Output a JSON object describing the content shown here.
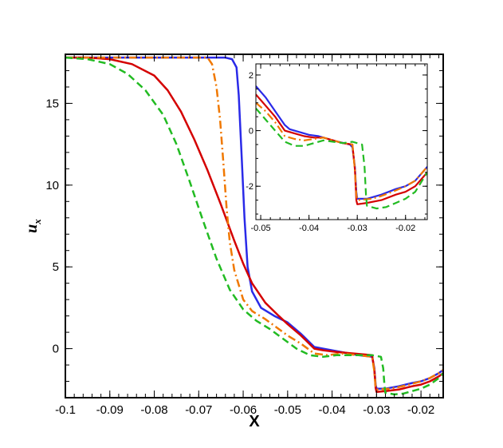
{
  "chart_data": [
    {
      "type": "line",
      "title": "",
      "xlabel": "X",
      "ylabel": "u",
      "ylabel_subscript": "x",
      "xlim": [
        -0.1,
        -0.015
      ],
      "ylim": [
        -3,
        18
      ],
      "x_ticks": [
        -0.1,
        -0.09,
        -0.08,
        -0.07,
        -0.06,
        -0.05,
        -0.04,
        -0.03,
        -0.02
      ],
      "x_tick_labels": [
        "-0.1",
        "-0.09",
        "-0.08",
        "-0.07",
        "-0.06",
        "-0.05",
        "-0.04",
        "-0.03",
        "-0.02"
      ],
      "y_ticks": [
        0,
        5,
        10,
        15
      ],
      "y_tick_labels": [
        "0",
        "5",
        "10",
        "15"
      ],
      "grid": false,
      "legend": "none",
      "series": [
        {
          "color": "#2a2ae8",
          "dash": "solid",
          "points": [
            [
              -0.1,
              17.8
            ],
            [
              -0.09,
              17.8
            ],
            [
              -0.08,
              17.8
            ],
            [
              -0.07,
              17.8
            ],
            [
              -0.064,
              17.8
            ],
            [
              -0.0625,
              17.7
            ],
            [
              -0.0615,
              17.2
            ],
            [
              -0.061,
              15.5
            ],
            [
              -0.0603,
              11.5
            ],
            [
              -0.0597,
              8.0
            ],
            [
              -0.059,
              5.0
            ],
            [
              -0.058,
              3.5
            ],
            [
              -0.056,
              2.5
            ],
            [
              -0.053,
              2.0
            ],
            [
              -0.05,
              1.6
            ],
            [
              -0.047,
              0.9
            ],
            [
              -0.044,
              0.1
            ],
            [
              -0.042,
              0.0
            ],
            [
              -0.038,
              -0.2
            ],
            [
              -0.034,
              -0.4
            ],
            [
              -0.031,
              -0.5
            ],
            [
              -0.0305,
              -1.2
            ],
            [
              -0.0302,
              -2.2
            ],
            [
              -0.03,
              -2.45
            ],
            [
              -0.028,
              -2.45
            ],
            [
              -0.025,
              -2.3
            ],
            [
              -0.022,
              -2.1
            ],
            [
              -0.02,
              -2.0
            ],
            [
              -0.018,
              -1.8
            ],
            [
              -0.016,
              -1.5
            ],
            [
              -0.015,
              -1.3
            ]
          ]
        },
        {
          "color": "#d40000",
          "dash": "solid",
          "points": [
            [
              -0.1,
              17.8
            ],
            [
              -0.095,
              17.8
            ],
            [
              -0.09,
              17.7
            ],
            [
              -0.085,
              17.4
            ],
            [
              -0.08,
              16.7
            ],
            [
              -0.077,
              15.8
            ],
            [
              -0.074,
              14.5
            ],
            [
              -0.071,
              12.8
            ],
            [
              -0.068,
              10.9
            ],
            [
              -0.065,
              8.8
            ],
            [
              -0.062,
              6.6
            ],
            [
              -0.06,
              5.2
            ],
            [
              -0.058,
              4.0
            ],
            [
              -0.055,
              2.8
            ],
            [
              -0.052,
              2.0
            ],
            [
              -0.05,
              1.5
            ],
            [
              -0.047,
              0.8
            ],
            [
              -0.044,
              0.0
            ],
            [
              -0.042,
              -0.1
            ],
            [
              -0.039,
              -0.2
            ],
            [
              -0.035,
              -0.3
            ],
            [
              -0.031,
              -0.4
            ],
            [
              -0.0305,
              -1.3
            ],
            [
              -0.0302,
              -2.4
            ],
            [
              -0.03,
              -2.65
            ],
            [
              -0.028,
              -2.6
            ],
            [
              -0.025,
              -2.5
            ],
            [
              -0.022,
              -2.3
            ],
            [
              -0.02,
              -2.2
            ],
            [
              -0.018,
              -2.0
            ],
            [
              -0.016,
              -1.7
            ],
            [
              -0.015,
              -1.5
            ]
          ]
        },
        {
          "color": "#f07800",
          "dash": "dashdot",
          "points": [
            [
              -0.1,
              17.8
            ],
            [
              -0.09,
              17.8
            ],
            [
              -0.08,
              17.8
            ],
            [
              -0.07,
              17.8
            ],
            [
              -0.068,
              17.8
            ],
            [
              -0.067,
              17.4
            ],
            [
              -0.066,
              16.0
            ],
            [
              -0.0652,
              14.0
            ],
            [
              -0.0645,
              11.5
            ],
            [
              -0.0637,
              8.5
            ],
            [
              -0.063,
              6.5
            ],
            [
              -0.062,
              4.8
            ],
            [
              -0.06,
              3.0
            ],
            [
              -0.058,
              2.3
            ],
            [
              -0.055,
              1.8
            ],
            [
              -0.052,
              1.2
            ],
            [
              -0.05,
              0.8
            ],
            [
              -0.047,
              0.3
            ],
            [
              -0.044,
              -0.3
            ],
            [
              -0.041,
              -0.4
            ],
            [
              -0.038,
              -0.3
            ],
            [
              -0.034,
              -0.4
            ],
            [
              -0.031,
              -0.5
            ],
            [
              -0.0305,
              -1.4
            ],
            [
              -0.0302,
              -2.3
            ],
            [
              -0.03,
              -2.5
            ],
            [
              -0.027,
              -2.45
            ],
            [
              -0.025,
              -2.35
            ],
            [
              -0.022,
              -2.15
            ],
            [
              -0.02,
              -2.0
            ],
            [
              -0.018,
              -1.8
            ],
            [
              -0.016,
              -1.5
            ],
            [
              -0.015,
              -1.3
            ]
          ]
        },
        {
          "color": "#22bb22",
          "dash": "dashed",
          "points": [
            [
              -0.1,
              17.8
            ],
            [
              -0.095,
              17.7
            ],
            [
              -0.09,
              17.4
            ],
            [
              -0.086,
              16.8
            ],
            [
              -0.082,
              15.8
            ],
            [
              -0.078,
              14.3
            ],
            [
              -0.075,
              12.5
            ],
            [
              -0.072,
              10.2
            ],
            [
              -0.069,
              7.8
            ],
            [
              -0.066,
              5.5
            ],
            [
              -0.063,
              3.6
            ],
            [
              -0.06,
              2.4
            ],
            [
              -0.057,
              1.7
            ],
            [
              -0.054,
              1.2
            ],
            [
              -0.051,
              0.6
            ],
            [
              -0.048,
              0.0
            ],
            [
              -0.045,
              -0.4
            ],
            [
              -0.042,
              -0.5
            ],
            [
              -0.039,
              -0.4
            ],
            [
              -0.035,
              -0.4
            ],
            [
              -0.031,
              -0.4
            ],
            [
              -0.029,
              -0.5
            ],
            [
              -0.0285,
              -1.2
            ],
            [
              -0.0282,
              -2.3
            ],
            [
              -0.028,
              -2.7
            ],
            [
              -0.026,
              -2.8
            ],
            [
              -0.024,
              -2.75
            ],
            [
              -0.022,
              -2.6
            ],
            [
              -0.02,
              -2.45
            ],
            [
              -0.018,
              -2.2
            ],
            [
              -0.016,
              -1.8
            ],
            [
              -0.015,
              -1.5
            ]
          ]
        }
      ]
    },
    {
      "type": "line",
      "title": "",
      "xlabel": "",
      "ylabel": "",
      "xlim": [
        -0.051,
        -0.0155
      ],
      "ylim": [
        -3.2,
        2.4
      ],
      "x_ticks": [
        -0.05,
        -0.04,
        -0.03,
        -0.02
      ],
      "x_tick_labels": [
        "-0.05",
        "-0.04",
        "-0.03",
        "-0.02"
      ],
      "y_ticks": [
        -2,
        0,
        2
      ],
      "y_tick_labels": [
        "-2",
        "0",
        "2"
      ],
      "grid": false,
      "legend": "none",
      "series": [
        {
          "color": "#2a2ae8",
          "dash": "solid",
          "points": [
            [
              -0.051,
              1.6
            ],
            [
              -0.049,
              1.2
            ],
            [
              -0.047,
              0.7
            ],
            [
              -0.045,
              0.2
            ],
            [
              -0.044,
              0.05
            ],
            [
              -0.042,
              -0.05
            ],
            [
              -0.04,
              -0.15
            ],
            [
              -0.038,
              -0.2
            ],
            [
              -0.036,
              -0.3
            ],
            [
              -0.034,
              -0.4
            ],
            [
              -0.0315,
              -0.5
            ],
            [
              -0.031,
              -0.6
            ],
            [
              -0.0305,
              -1.3
            ],
            [
              -0.0302,
              -2.2
            ],
            [
              -0.03,
              -2.45
            ],
            [
              -0.028,
              -2.45
            ],
            [
              -0.025,
              -2.3
            ],
            [
              -0.022,
              -2.1
            ],
            [
              -0.02,
              -2.0
            ],
            [
              -0.018,
              -1.8
            ],
            [
              -0.0155,
              -1.3
            ]
          ]
        },
        {
          "color": "#d40000",
          "dash": "solid",
          "points": [
            [
              -0.051,
              1.3
            ],
            [
              -0.049,
              0.9
            ],
            [
              -0.047,
              0.5
            ],
            [
              -0.045,
              0.0
            ],
            [
              -0.043,
              -0.1
            ],
            [
              -0.041,
              -0.2
            ],
            [
              -0.039,
              -0.25
            ],
            [
              -0.037,
              -0.25
            ],
            [
              -0.035,
              -0.35
            ],
            [
              -0.033,
              -0.45
            ],
            [
              -0.031,
              -0.5
            ],
            [
              -0.0305,
              -1.4
            ],
            [
              -0.0302,
              -2.5
            ],
            [
              -0.03,
              -2.65
            ],
            [
              -0.028,
              -2.6
            ],
            [
              -0.025,
              -2.5
            ],
            [
              -0.022,
              -2.3
            ],
            [
              -0.02,
              -2.2
            ],
            [
              -0.018,
              -2.0
            ],
            [
              -0.0155,
              -1.5
            ]
          ]
        },
        {
          "color": "#f07800",
          "dash": "dashdot",
          "points": [
            [
              -0.051,
              1.0
            ],
            [
              -0.049,
              0.7
            ],
            [
              -0.047,
              0.3
            ],
            [
              -0.045,
              -0.2
            ],
            [
              -0.043,
              -0.3
            ],
            [
              -0.041,
              -0.35
            ],
            [
              -0.039,
              -0.3
            ],
            [
              -0.037,
              -0.25
            ],
            [
              -0.035,
              -0.35
            ],
            [
              -0.033,
              -0.45
            ],
            [
              -0.031,
              -0.5
            ],
            [
              -0.0305,
              -1.4
            ],
            [
              -0.0302,
              -2.3
            ],
            [
              -0.03,
              -2.5
            ],
            [
              -0.027,
              -2.45
            ],
            [
              -0.025,
              -2.35
            ],
            [
              -0.022,
              -2.15
            ],
            [
              -0.02,
              -2.0
            ],
            [
              -0.018,
              -1.8
            ],
            [
              -0.0155,
              -1.3
            ]
          ]
        },
        {
          "color": "#22bb22",
          "dash": "dashed",
          "points": [
            [
              -0.051,
              0.8
            ],
            [
              -0.049,
              0.4
            ],
            [
              -0.047,
              0.0
            ],
            [
              -0.045,
              -0.4
            ],
            [
              -0.043,
              -0.55
            ],
            [
              -0.041,
              -0.55
            ],
            [
              -0.039,
              -0.45
            ],
            [
              -0.037,
              -0.35
            ],
            [
              -0.035,
              -0.4
            ],
            [
              -0.033,
              -0.45
            ],
            [
              -0.031,
              -0.4
            ],
            [
              -0.029,
              -0.5
            ],
            [
              -0.0285,
              -1.3
            ],
            [
              -0.0282,
              -2.3
            ],
            [
              -0.028,
              -2.7
            ],
            [
              -0.026,
              -2.8
            ],
            [
              -0.024,
              -2.75
            ],
            [
              -0.022,
              -2.6
            ],
            [
              -0.02,
              -2.45
            ],
            [
              -0.018,
              -2.2
            ],
            [
              -0.0155,
              -1.5
            ]
          ]
        }
      ]
    }
  ]
}
